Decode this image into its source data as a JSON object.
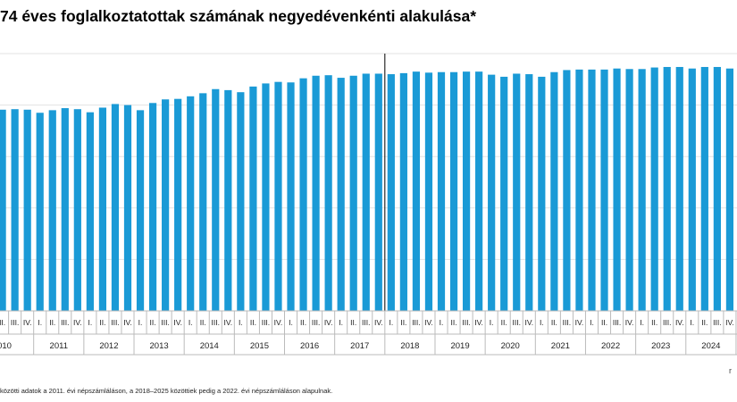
{
  "title": "74 éves foglalkoztatottak számának negyedévenkénti alakulása*",
  "footnote": "közötti adatok a 2011. évi népszámláláson, a 2018–2025 közöttiek pedig a 2022. évi népszámláláson alapulnak.",
  "source_fragment": "r",
  "colors": {
    "bar": "#1a9ad6",
    "grid": "#e3e3e3",
    "break_line": "#000000",
    "axis": "#bbbbbb"
  },
  "chart_data": {
    "type": "bar",
    "title": "74 éves foglalkoztatottak számának negyedévenkénti alakulása*",
    "xlabel": "",
    "ylabel": "",
    "ylim": [
      0,
      5
    ],
    "grid": true,
    "legend": "none",
    "break_after": "2017 IV.",
    "visible_years": [
      "010",
      "2011",
      "2012",
      "2013",
      "2014",
      "2015",
      "2016",
      "2017",
      "2018",
      "2019",
      "2020",
      "2021",
      "2022",
      "2023",
      "2024",
      ""
    ],
    "quarter_labels": [
      "I.",
      "II.",
      "III.",
      "IV."
    ],
    "categories": [
      "2010 II.",
      "2010 III.",
      "2010 IV.",
      "2011 I.",
      "2011 II.",
      "2011 III.",
      "2011 IV.",
      "2012 I.",
      "2012 II.",
      "2012 III.",
      "2012 IV.",
      "2013 I.",
      "2013 II.",
      "2013 III.",
      "2013 IV.",
      "2014 I.",
      "2014 II.",
      "2014 III.",
      "2014 IV.",
      "2015 I.",
      "2015 II.",
      "2015 III.",
      "2015 IV.",
      "2016 I.",
      "2016 II.",
      "2016 III.",
      "2016 IV.",
      "2017 I.",
      "2017 II.",
      "2017 III.",
      "2017 IV.",
      "2018 I.",
      "2018 II.",
      "2018 III.",
      "2018 IV.",
      "2019 I.",
      "2019 II.",
      "2019 III.",
      "2019 IV.",
      "2020 I.",
      "2020 II.",
      "2020 III.",
      "2020 IV.",
      "2021 I.",
      "2021 II.",
      "2021 III.",
      "2021 IV.",
      "2022 I.",
      "2022 II.",
      "2022 III.",
      "2022 IV.",
      "2023 I.",
      "2023 II.",
      "2023 III.",
      "2023 IV.",
      "2024 I.",
      "2024 II.",
      "2024 III.",
      "2024 IV.",
      "2025 I."
    ],
    "values": [
      3.91,
      3.92,
      3.91,
      3.85,
      3.9,
      3.94,
      3.92,
      3.86,
      3.95,
      4.02,
      4.0,
      3.9,
      4.04,
      4.11,
      4.12,
      4.17,
      4.23,
      4.31,
      4.29,
      4.25,
      4.36,
      4.42,
      4.45,
      4.44,
      4.52,
      4.57,
      4.58,
      4.53,
      4.57,
      4.61,
      4.61,
      4.6,
      4.62,
      4.65,
      4.63,
      4.64,
      4.64,
      4.65,
      4.65,
      4.59,
      4.55,
      4.61,
      4.6,
      4.55,
      4.64,
      4.68,
      4.69,
      4.69,
      4.69,
      4.71,
      4.7,
      4.7,
      4.73,
      4.74,
      4.74,
      4.71,
      4.74,
      4.74,
      4.71,
      4.73
    ]
  }
}
